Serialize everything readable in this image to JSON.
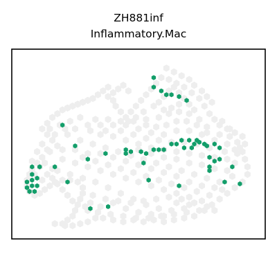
{
  "chart_data": {
    "type": "scatter",
    "title": "ZH881inf",
    "subtitle": "Inflammatory.Mac",
    "xlabel": "",
    "ylabel": "",
    "grid": false,
    "legend": "none",
    "axes_ticks": false,
    "xlim": [
      0,
      100
    ],
    "ylim": [
      0,
      100
    ],
    "colors": {
      "background_cells": "#eeeeee",
      "highlight_cells": "#139e6a",
      "frame": "#000000"
    },
    "background_points": [
      [
        38,
        80
      ],
      [
        40,
        77
      ],
      [
        42,
        79
      ],
      [
        44,
        81
      ],
      [
        46,
        78
      ],
      [
        36,
        78
      ],
      [
        34,
        76
      ],
      [
        32,
        74
      ],
      [
        30,
        73
      ],
      [
        28,
        72
      ],
      [
        26,
        71
      ],
      [
        24,
        70
      ],
      [
        22,
        69
      ],
      [
        20,
        68
      ],
      [
        18,
        66
      ],
      [
        16,
        64
      ],
      [
        14,
        61
      ],
      [
        12,
        58
      ],
      [
        14,
        55
      ],
      [
        16,
        52
      ],
      [
        18,
        49
      ],
      [
        15,
        46
      ],
      [
        12,
        43
      ],
      [
        10,
        40
      ],
      [
        8,
        37
      ],
      [
        7,
        34
      ],
      [
        6,
        31
      ],
      [
        6,
        28
      ],
      [
        7,
        25
      ],
      [
        9,
        23
      ],
      [
        11,
        24
      ],
      [
        13,
        26
      ],
      [
        15,
        28
      ],
      [
        17,
        30
      ],
      [
        20,
        31
      ],
      [
        23,
        31
      ],
      [
        26,
        30
      ],
      [
        28,
        27
      ],
      [
        28,
        24
      ],
      [
        27,
        21
      ],
      [
        26,
        18
      ],
      [
        25,
        15
      ],
      [
        24,
        12
      ],
      [
        22,
        10
      ],
      [
        20,
        8
      ],
      [
        21,
        7
      ],
      [
        24,
        7
      ],
      [
        27,
        8
      ],
      [
        30,
        9
      ],
      [
        33,
        11
      ],
      [
        36,
        11
      ],
      [
        40,
        10
      ],
      [
        44,
        9
      ],
      [
        48,
        10
      ],
      [
        52,
        9
      ],
      [
        56,
        10
      ],
      [
        60,
        9
      ],
      [
        64,
        10
      ],
      [
        68,
        11
      ],
      [
        72,
        12
      ],
      [
        76,
        15
      ],
      [
        79,
        18
      ],
      [
        82,
        21
      ],
      [
        85,
        24
      ],
      [
        88,
        27
      ],
      [
        91,
        30
      ],
      [
        93,
        34
      ],
      [
        93,
        38
      ],
      [
        92,
        42
      ],
      [
        91,
        46
      ],
      [
        92,
        50
      ],
      [
        91,
        54
      ],
      [
        88,
        56
      ],
      [
        85,
        58
      ],
      [
        82,
        60
      ],
      [
        80,
        63
      ],
      [
        78,
        66
      ],
      [
        76,
        70
      ],
      [
        74,
        74
      ],
      [
        71,
        77
      ],
      [
        68,
        80
      ],
      [
        65,
        82
      ],
      [
        62,
        84
      ],
      [
        59,
        85
      ],
      [
        57,
        82
      ],
      [
        55,
        79
      ],
      [
        53,
        76
      ],
      [
        51,
        73
      ],
      [
        49,
        70
      ],
      [
        47,
        67
      ],
      [
        45,
        64
      ],
      [
        43,
        67
      ],
      [
        41,
        70
      ],
      [
        40,
        73
      ],
      [
        38,
        75
      ],
      [
        61,
        90
      ],
      [
        64,
        88
      ],
      [
        67,
        86
      ],
      [
        70,
        84
      ],
      [
        72,
        81
      ],
      [
        75,
        78
      ],
      [
        77,
        75
      ],
      [
        79,
        72
      ],
      [
        17,
        8
      ],
      [
        30,
        60
      ],
      [
        35,
        60
      ],
      [
        40,
        60
      ],
      [
        45,
        60
      ],
      [
        50,
        58
      ],
      [
        55,
        56
      ],
      [
        60,
        55
      ],
      [
        65,
        57
      ],
      [
        70,
        57
      ],
      [
        75,
        55
      ],
      [
        80,
        52
      ],
      [
        85,
        50
      ],
      [
        22,
        55
      ],
      [
        27,
        52
      ],
      [
        32,
        50
      ],
      [
        37,
        48
      ],
      [
        42,
        46
      ],
      [
        47,
        44
      ],
      [
        52,
        42
      ],
      [
        57,
        40
      ],
      [
        62,
        38
      ],
      [
        67,
        36
      ],
      [
        72,
        34
      ],
      [
        77,
        32
      ],
      [
        82,
        30
      ],
      [
        87,
        33
      ],
      [
        20,
        42
      ],
      [
        25,
        40
      ],
      [
        30,
        38
      ],
      [
        35,
        36
      ],
      [
        40,
        34
      ],
      [
        45,
        32
      ],
      [
        50,
        30
      ],
      [
        55,
        28
      ],
      [
        60,
        26
      ],
      [
        65,
        24
      ],
      [
        70,
        22
      ],
      [
        75,
        20
      ],
      [
        18,
        36
      ],
      [
        23,
        34
      ],
      [
        28,
        32
      ],
      [
        33,
        30
      ],
      [
        38,
        27
      ],
      [
        43,
        24
      ],
      [
        48,
        21
      ],
      [
        53,
        18
      ],
      [
        58,
        16
      ],
      [
        63,
        15
      ],
      [
        68,
        16
      ],
      [
        35,
        45
      ],
      [
        40,
        43
      ],
      [
        45,
        41
      ],
      [
        50,
        39
      ],
      [
        55,
        37
      ],
      [
        60,
        35
      ],
      [
        65,
        33
      ],
      [
        70,
        30
      ],
      [
        75,
        28
      ],
      [
        80,
        27
      ],
      [
        30,
        45
      ],
      [
        25,
        47
      ],
      [
        20,
        47
      ],
      [
        50,
        50
      ],
      [
        55,
        48
      ],
      [
        60,
        47
      ],
      [
        65,
        46
      ],
      [
        70,
        45
      ],
      [
        75,
        44
      ],
      [
        80,
        43
      ],
      [
        85,
        42
      ],
      [
        88,
        40
      ],
      [
        35,
        55
      ],
      [
        40,
        54
      ],
      [
        45,
        52
      ],
      [
        50,
        47
      ],
      [
        55,
        45
      ],
      [
        60,
        43
      ],
      [
        65,
        42
      ],
      [
        70,
        40
      ],
      [
        75,
        39
      ],
      [
        80,
        37
      ],
      [
        85,
        36
      ],
      [
        28,
        43
      ],
      [
        33,
        41
      ],
      [
        38,
        39
      ],
      [
        43,
        37
      ],
      [
        48,
        35
      ],
      [
        53,
        33
      ],
      [
        58,
        31
      ],
      [
        63,
        29
      ],
      [
        68,
        27
      ],
      [
        73,
        25
      ],
      [
        78,
        23
      ],
      [
        83,
        26
      ],
      [
        40,
        19
      ],
      [
        45,
        16
      ],
      [
        50,
        14
      ],
      [
        55,
        13
      ],
      [
        60,
        12
      ],
      [
        35,
        17
      ],
      [
        30,
        15
      ],
      [
        65,
        19
      ],
      [
        70,
        18
      ],
      [
        33,
        63
      ],
      [
        38,
        63
      ],
      [
        43,
        62
      ],
      [
        48,
        62
      ],
      [
        53,
        63
      ],
      [
        58,
        64
      ],
      [
        62,
        66
      ],
      [
        66,
        67
      ],
      [
        70,
        66
      ],
      [
        74,
        63
      ],
      [
        77,
        59
      ],
      [
        27,
        64
      ],
      [
        23,
        62
      ],
      [
        19,
        60
      ],
      [
        15,
        58
      ],
      [
        17,
        55
      ],
      [
        21,
        58
      ],
      [
        25,
        58
      ],
      [
        31,
        57
      ],
      [
        37,
        57
      ],
      [
        43,
        57
      ],
      [
        48,
        55
      ],
      [
        53,
        53
      ],
      [
        58,
        52
      ],
      [
        63,
        51
      ],
      [
        68,
        51
      ],
      [
        73,
        50
      ],
      [
        78,
        48
      ],
      [
        84,
        46
      ],
      [
        89,
        45
      ],
      [
        12,
        50
      ],
      [
        14,
        47
      ],
      [
        10,
        46
      ],
      [
        8,
        41
      ],
      [
        11,
        38
      ],
      [
        9,
        34
      ],
      [
        12,
        31
      ],
      [
        14,
        34
      ],
      [
        16,
        37
      ],
      [
        13,
        40
      ],
      [
        58,
        72
      ],
      [
        60,
        75
      ],
      [
        62,
        78
      ],
      [
        64,
        80
      ],
      [
        66,
        77
      ],
      [
        68,
        74
      ],
      [
        70,
        71
      ],
      [
        72,
        68
      ],
      [
        66,
        71
      ],
      [
        63,
        69
      ],
      [
        60,
        68
      ],
      [
        56,
        70
      ],
      [
        52,
        67
      ],
      [
        49,
        64
      ],
      [
        46,
        62
      ],
      [
        53,
        60
      ],
      [
        57,
        59
      ],
      [
        61,
        60
      ],
      [
        65,
        62
      ],
      [
        69,
        62
      ],
      [
        73,
        60
      ],
      [
        77,
        56
      ],
      [
        82,
        55
      ],
      [
        86,
        54
      ],
      [
        89,
        51
      ],
      [
        90,
        48
      ],
      [
        88,
        47
      ],
      [
        86,
        58
      ],
      [
        83,
        62
      ],
      [
        32,
        23
      ],
      [
        37,
        21
      ],
      [
        42,
        20
      ],
      [
        47,
        19
      ],
      [
        52,
        20
      ],
      [
        57,
        21
      ],
      [
        62,
        22
      ],
      [
        67,
        21
      ],
      [
        72,
        19
      ],
      [
        77,
        17
      ],
      [
        80,
        15
      ],
      [
        31,
        19
      ],
      [
        29,
        17
      ],
      [
        34,
        14
      ],
      [
        39,
        13
      ],
      [
        44,
        12
      ],
      [
        49,
        11
      ],
      [
        54,
        11
      ],
      [
        59,
        12
      ],
      [
        64,
        13
      ],
      [
        69,
        14
      ],
      [
        74,
        15
      ],
      [
        24,
        20
      ],
      [
        22,
        23
      ],
      [
        20,
        26
      ],
      [
        18,
        29
      ],
      [
        16,
        32
      ]
    ],
    "highlight_points": [
      [
        56,
        85
      ],
      [
        56,
        80
      ],
      [
        59,
        78
      ],
      [
        61,
        76
      ],
      [
        63,
        76
      ],
      [
        66,
        75
      ],
      [
        69,
        73
      ],
      [
        20,
        60
      ],
      [
        25,
        49
      ],
      [
        37,
        45
      ],
      [
        45,
        47
      ],
      [
        45,
        45
      ],
      [
        47,
        46
      ],
      [
        51,
        46
      ],
      [
        53,
        45
      ],
      [
        56,
        47
      ],
      [
        58,
        47
      ],
      [
        60,
        47
      ],
      [
        63,
        50
      ],
      [
        65,
        50
      ],
      [
        70,
        52
      ],
      [
        71,
        48
      ],
      [
        72,
        50
      ],
      [
        73,
        52
      ],
      [
        74,
        51
      ],
      [
        76,
        50
      ],
      [
        77,
        49
      ],
      [
        80,
        50
      ],
      [
        82,
        48
      ],
      [
        67,
        52
      ],
      [
        68,
        48
      ],
      [
        30,
        42
      ],
      [
        52,
        40
      ],
      [
        78,
        43
      ],
      [
        80,
        41
      ],
      [
        82,
        42
      ],
      [
        78,
        38
      ],
      [
        78,
        36
      ],
      [
        87,
        38
      ],
      [
        84,
        30
      ],
      [
        90,
        29
      ],
      [
        8,
        34
      ],
      [
        8,
        31
      ],
      [
        8,
        28
      ],
      [
        6,
        30
      ],
      [
        6,
        27
      ],
      [
        7,
        25
      ],
      [
        9,
        25
      ],
      [
        10,
        28
      ],
      [
        10,
        32
      ],
      [
        8,
        38
      ],
      [
        11,
        38
      ],
      [
        17,
        38
      ],
      [
        22,
        30
      ],
      [
        54,
        31
      ],
      [
        66,
        28
      ],
      [
        31,
        16
      ],
      [
        38,
        17
      ]
    ]
  }
}
